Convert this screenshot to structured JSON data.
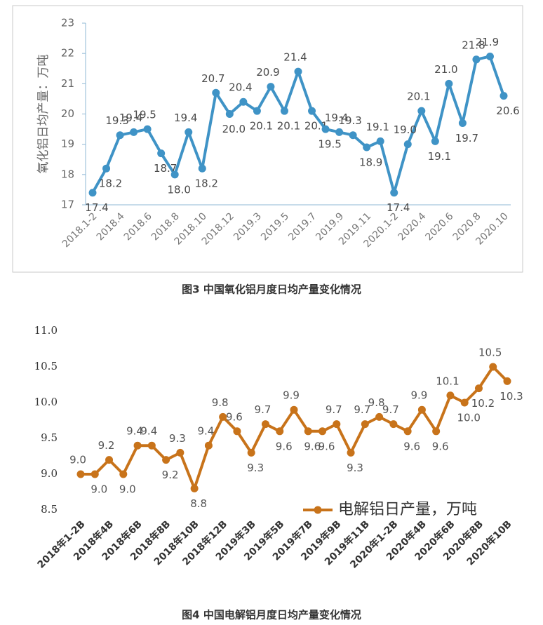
{
  "chart_data": [
    {
      "type": "line",
      "title": "图3 中国氧化铝月度日均产量变化情况",
      "y_label": "氧化铝日均产量：万吨",
      "categories": [
        "2018.1-2",
        null,
        "2018.4",
        null,
        "2018.6",
        null,
        "2018.8",
        null,
        "2018.10",
        null,
        "2018.12",
        null,
        "2019.3",
        null,
        "2019.5",
        null,
        "2019.7",
        null,
        "2019.9",
        null,
        "2019.11",
        null,
        "2020.1-2",
        null,
        "2020.4",
        null,
        "2020.6",
        null,
        "2020.8",
        null,
        "2020.10"
      ],
      "values": [
        17.4,
        18.2,
        19.3,
        19.4,
        19.5,
        18.7,
        18.0,
        19.4,
        18.2,
        20.7,
        20.0,
        20.4,
        20.1,
        20.9,
        20.1,
        21.4,
        20.1,
        19.5,
        19.4,
        19.3,
        18.9,
        19.1,
        17.4,
        19.0,
        20.1,
        19.1,
        21.0,
        19.7,
        21.8,
        21.9,
        20.6
      ],
      "value_labels": [
        "17.4",
        "18.2",
        "19.3",
        "19.4",
        "19.5",
        "18.7",
        "18.0",
        "19.4",
        "18.2",
        "20.7",
        "20.0",
        "20.4",
        "20.1",
        "20.9",
        "20.1",
        "21.4",
        "20.1",
        "19.5",
        "19.4",
        "19.3",
        "18.9",
        "19.1",
        "17.4",
        "19.0",
        "20.1",
        "19.1",
        "21.0",
        "19.7",
        "21.8",
        "21.9",
        "20.6"
      ],
      "color": "#3f93c6",
      "ylim": [
        17,
        23
      ],
      "yticks": [
        17,
        18,
        19,
        20,
        21,
        22,
        23
      ],
      "grid": false
    },
    {
      "type": "line",
      "title": "图4 中国电解铝月度日均产量变化情况",
      "categories": [
        "2018年1-2B",
        null,
        "2018年4B",
        null,
        "2018年6B",
        null,
        "2018年8B",
        null,
        "2018年10B",
        null,
        "2018年12B",
        null,
        "2019年3B",
        null,
        "2019年5B",
        null,
        "2019年7B",
        null,
        "2019年9B",
        null,
        "2019年11B",
        null,
        "2020年1-2B",
        null,
        "2020年4B",
        null,
        "2020年6B",
        null,
        "2020年8B",
        null,
        "2020年10B"
      ],
      "series": [
        {
          "name": "电解铝日产量，万吨",
          "color": "#c8731a",
          "values": [
            9.0,
            9.0,
            9.2,
            9.0,
            9.4,
            9.4,
            9.2,
            9.3,
            8.8,
            9.4,
            9.8,
            9.6,
            9.3,
            9.7,
            9.6,
            9.9,
            9.6,
            9.6,
            9.7,
            9.3,
            9.7,
            9.8,
            9.7,
            9.6,
            9.9,
            9.6,
            10.1,
            10.0,
            10.2,
            10.5,
            10.3
          ],
          "value_labels": [
            "9.0",
            "9.0",
            "9.2",
            "9.0",
            "9.4",
            "9.4",
            "9.2",
            "9.3",
            "8.8",
            "9.4",
            "9.8",
            "9.6",
            "9.3",
            "9.7",
            "9.6",
            "9.9",
            "9.6",
            "9.6",
            "9.7",
            "9.3",
            "9.7",
            "9.8",
            "9.7",
            "9.6",
            "9.9",
            "9.6",
            "10.1",
            "10.0",
            "10.2",
            "10.5",
            "10.3"
          ]
        }
      ],
      "ylim": [
        8.5,
        11.0
      ],
      "yticks": [
        8.5,
        {
          "value": 9.0,
          "label": "9.0"
        },
        9.5,
        {
          "value": 10.0,
          "label": "10.0"
        },
        10.5,
        {
          "value": 11.0,
          "label": "11.0"
        }
      ],
      "grid": false,
      "legend": "lower-right"
    }
  ]
}
